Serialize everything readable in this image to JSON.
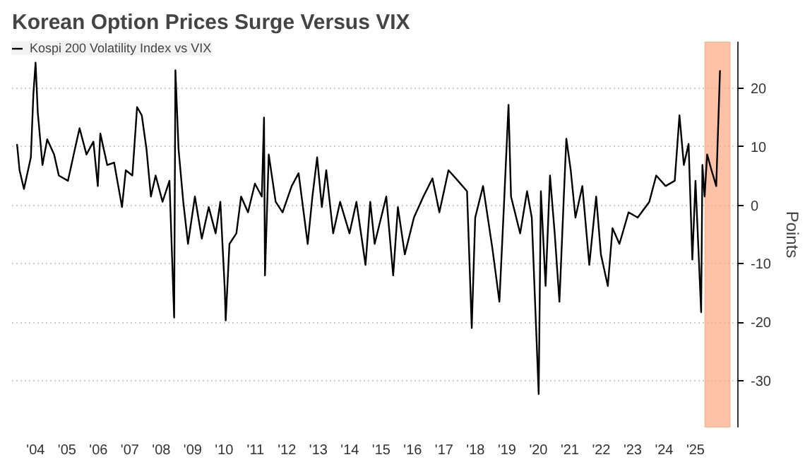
{
  "chart_data": {
    "type": "line",
    "title": "Korean Option Prices Surge Versus VIX",
    "ylabel": "Points",
    "xlim": [
      2003.25,
      2026.35
    ],
    "ylim": [
      -38,
      28
    ],
    "xticks": [
      {
        "value": 2004,
        "label": "'04"
      },
      {
        "value": 2005,
        "label": "'05"
      },
      {
        "value": 2006,
        "label": "'06"
      },
      {
        "value": 2007,
        "label": "'07"
      },
      {
        "value": 2008,
        "label": "'08"
      },
      {
        "value": 2009,
        "label": "'09"
      },
      {
        "value": 2010,
        "label": "'10"
      },
      {
        "value": 2011,
        "label": "'11"
      },
      {
        "value": 2012,
        "label": "'12"
      },
      {
        "value": 2013,
        "label": "'13"
      },
      {
        "value": 2014,
        "label": "'14"
      },
      {
        "value": 2015,
        "label": "'15"
      },
      {
        "value": 2016,
        "label": "'16"
      },
      {
        "value": 2017,
        "label": "'17"
      },
      {
        "value": 2018,
        "label": "'18"
      },
      {
        "value": 2019,
        "label": "'19"
      },
      {
        "value": 2020,
        "label": "'20"
      },
      {
        "value": 2021,
        "label": "'21"
      },
      {
        "value": 2022,
        "label": "'22"
      },
      {
        "value": 2023,
        "label": "'23"
      },
      {
        "value": 2024,
        "label": "'24"
      },
      {
        "value": 2025,
        "label": "'25"
      }
    ],
    "yticks": [
      {
        "value": 20,
        "label": "20"
      },
      {
        "value": 10,
        "label": "10"
      },
      {
        "value": 0,
        "label": "0"
      },
      {
        "value": -10,
        "label": "-10"
      },
      {
        "value": -20,
        "label": "-20"
      },
      {
        "value": -30,
        "label": "-30"
      }
    ],
    "grid": "y",
    "legend": "top left",
    "line_style": "solid",
    "bands": [
      {
        "axis": "x",
        "from": 2025.3,
        "to": 2026.1,
        "color": "#f9a882"
      }
    ],
    "series": [
      {
        "name": "Kospi 200 Volatility Index vs VIX",
        "color": "#000000",
        "x": [
          2003.41,
          2003.49,
          2003.63,
          2003.85,
          2003.93,
          2004.0,
          2004.07,
          2004.22,
          2004.37,
          2004.59,
          2004.74,
          2005.03,
          2005.25,
          2005.4,
          2005.62,
          2005.84,
          2005.98,
          2006.06,
          2006.28,
          2006.5,
          2006.75,
          2006.87,
          2007.08,
          2007.23,
          2007.38,
          2007.53,
          2007.67,
          2007.82,
          2008.04,
          2008.26,
          2008.41,
          2008.45,
          2008.55,
          2008.7,
          2008.85,
          2009.07,
          2009.29,
          2009.51,
          2009.73,
          2009.88,
          2010.02,
          2010.05,
          2010.17,
          2010.39,
          2010.54,
          2010.76,
          2010.98,
          2011.2,
          2011.27,
          2011.3,
          2011.42,
          2011.64,
          2011.86,
          2012.15,
          2012.37,
          2012.66,
          2012.81,
          2012.96,
          2013.11,
          2013.25,
          2013.47,
          2013.69,
          2013.99,
          2014.21,
          2014.5,
          2014.65,
          2014.79,
          2015.16,
          2015.38,
          2015.53,
          2015.75,
          2016.04,
          2016.34,
          2016.63,
          2016.85,
          2017.14,
          2017.44,
          2017.73,
          2017.88,
          2017.99,
          2018.24,
          2018.54,
          2018.76,
          2018.91,
          2019.05,
          2019.13,
          2019.42,
          2019.64,
          2019.79,
          2020.01,
          2020.08,
          2020.23,
          2020.37,
          2020.52,
          2020.67,
          2020.81,
          2020.89,
          2021.03,
          2021.18,
          2021.4,
          2021.62,
          2021.84,
          2021.99,
          2022.21,
          2022.36,
          2022.58,
          2022.87,
          2023.16,
          2023.53,
          2023.75,
          2024.05,
          2024.34,
          2024.49,
          2024.63,
          2024.78,
          2024.9,
          2025.0,
          2025.18,
          2025.22,
          2025.29,
          2025.37,
          2025.51,
          2025.66,
          2025.78
        ],
        "values": [
          10.5,
          6.0,
          2.8,
          8.2,
          19.0,
          24.4,
          15.9,
          6.9,
          11.3,
          8.7,
          5.1,
          4.2,
          9.6,
          13.2,
          8.7,
          10.9,
          3.3,
          12.3,
          6.9,
          7.3,
          -0.3,
          6.0,
          5.1,
          16.8,
          15.4,
          9.6,
          1.5,
          5.1,
          0.6,
          4.2,
          -19.2,
          23.1,
          9.6,
          0.6,
          -6.6,
          1.5,
          -5.7,
          -0.3,
          -4.8,
          0.6,
          -14.3,
          -19.7,
          -6.6,
          -4.8,
          1.5,
          -1.2,
          3.7,
          1.5,
          15.0,
          -12.0,
          8.7,
          0.6,
          -1.2,
          3.3,
          5.5,
          -6.6,
          1.5,
          8.2,
          -0.3,
          6.0,
          -4.8,
          0.6,
          -4.8,
          0.6,
          -10.2,
          0.6,
          -6.6,
          1.5,
          -12.0,
          -0.3,
          -8.4,
          -2.1,
          1.5,
          4.6,
          -1.2,
          6.0,
          4.2,
          2.4,
          -21.0,
          -2.1,
          3.3,
          -7.5,
          -16.5,
          0.6,
          17.2,
          1.5,
          -4.8,
          2.4,
          -2.1,
          -32.3,
          2.4,
          -13.8,
          5.1,
          -4.8,
          -16.5,
          1.5,
          11.4,
          6.0,
          -2.1,
          3.3,
          -10.2,
          1.5,
          -8.4,
          -13.8,
          -3.9,
          -6.6,
          -1.2,
          -2.1,
          0.6,
          5.1,
          3.3,
          4.2,
          15.4,
          6.9,
          10.5,
          -9.3,
          4.2,
          -18.3,
          6.9,
          1.5,
          8.7,
          6.0,
          3.3,
          23.1
        ]
      }
    ]
  }
}
